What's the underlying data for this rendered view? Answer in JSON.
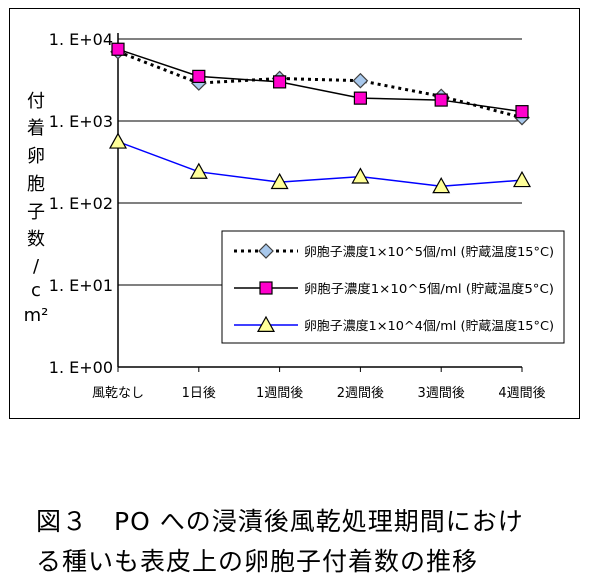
{
  "caption": {
    "line1": "図３　PO への浸漬後風乾処理期間におけ",
    "line2": "る種いも表皮上の卵胞子付着数の推移"
  },
  "chart_data": {
    "type": "line",
    "title": "",
    "xlabel": "",
    "ylabel_chars": [
      "付",
      "着",
      "卵",
      "胞",
      "子",
      "数",
      "/",
      "c",
      "m²"
    ],
    "categories": [
      "風乾なし",
      "1日後",
      "1週間後",
      "2週間後",
      "3週間後",
      "4週間後"
    ],
    "y_scale": "log",
    "ylim": [
      1,
      10000
    ],
    "yticks": [
      {
        "value": 1,
        "label": "1. E+00"
      },
      {
        "value": 10,
        "label": "1. E+01"
      },
      {
        "value": 100,
        "label": "1. E+02"
      },
      {
        "value": 1000,
        "label": "1. E+03"
      },
      {
        "value": 10000,
        "label": "1. E+04"
      }
    ],
    "grid": "horizontal",
    "legend_position": "center-right",
    "series": [
      {
        "name": "卵胞子濃度1×10^5個/ml (貯蔵温度15°C)",
        "marker": "diamond",
        "line": "dotted",
        "color": "#000000",
        "marker_fill": "#a8c8ec",
        "values": [
          7000,
          2900,
          3300,
          3100,
          2000,
          1100
        ]
      },
      {
        "name": "卵胞子濃度1×10^5個/ml (貯蔵温度5°C)",
        "marker": "square",
        "line": "solid",
        "color": "#000000",
        "marker_fill": "#ff00cc",
        "values": [
          7500,
          3500,
          3000,
          1900,
          1800,
          1300
        ]
      },
      {
        "name": "卵胞子濃度1×10^4個/ml (貯蔵温度15°C)",
        "marker": "triangle",
        "line": "solid",
        "color": "#0000ff",
        "marker_fill": "#ffff99",
        "values": [
          560,
          240,
          180,
          210,
          160,
          190
        ]
      }
    ]
  }
}
